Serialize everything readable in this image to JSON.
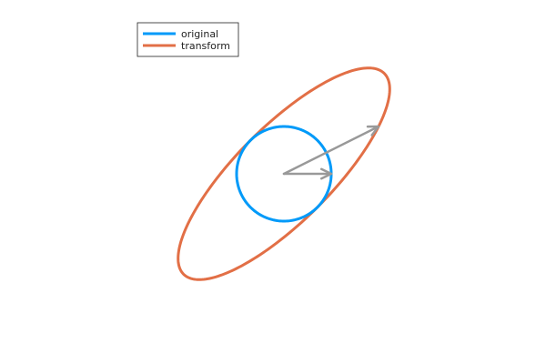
{
  "chart_data": {
    "type": "line",
    "title": "",
    "xlabel": "",
    "ylabel": "",
    "grid": false,
    "axes_visible": false,
    "aspect": "equal",
    "xlim": [
      -2.5,
      2.5
    ],
    "ylim": [
      -2.3,
      1.5
    ],
    "legend": {
      "position": "top-left"
    },
    "series": [
      {
        "name": "original",
        "color": "#009af9",
        "shape": "unit-circle",
        "center": [
          0,
          0
        ],
        "radius": 1
      },
      {
        "name": "transform",
        "color": "#e26f46",
        "shape": "ellipse",
        "center": [
          0,
          0
        ],
        "matrix": [
          [
            2,
            1
          ],
          [
            1,
            2
          ]
        ]
      }
    ],
    "vectors": [
      {
        "from": [
          0,
          0
        ],
        "to": [
          1,
          0
        ],
        "color": "#999999"
      },
      {
        "from": [
          0,
          0
        ],
        "to": [
          2,
          1
        ],
        "color": "#999999"
      }
    ]
  }
}
